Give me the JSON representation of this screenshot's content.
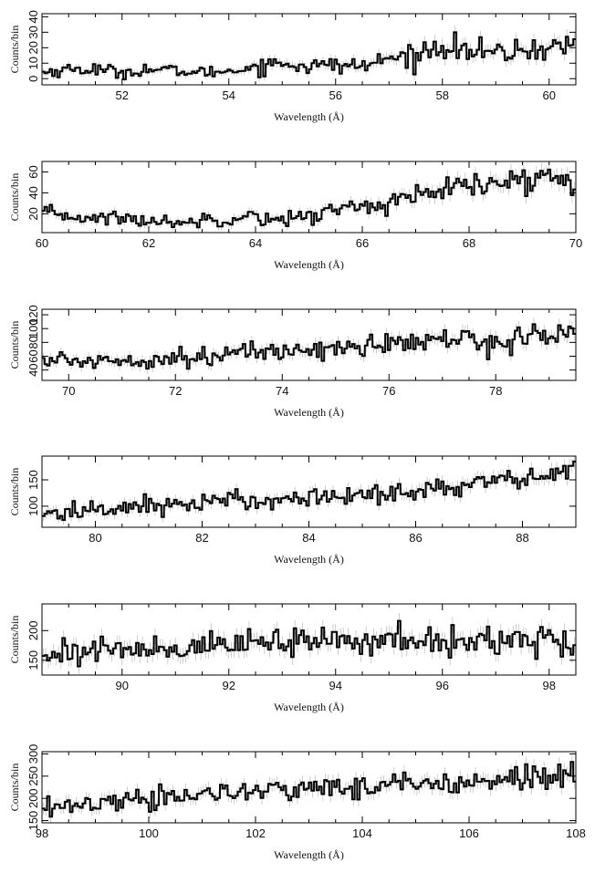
{
  "chart_data": [
    {
      "type": "line",
      "xlabel": "Wavelength (Å)",
      "ylabel": "Counts/bin",
      "xlim": [
        50.5,
        60.5
      ],
      "ylim": [
        -4,
        42
      ],
      "xticks": [
        52,
        54,
        56,
        58,
        60
      ],
      "yticks": [
        0,
        10,
        20,
        30,
        40
      ],
      "x": [
        50.5,
        51.0,
        51.5,
        52.0,
        52.5,
        53.0,
        53.5,
        54.0,
        54.5,
        55.0,
        55.5,
        56.0,
        56.5,
        57.0,
        57.5,
        58.0,
        58.5,
        59.0,
        59.5,
        60.0,
        60.5
      ],
      "values": [
        4,
        6,
        6,
        4,
        6,
        5,
        4,
        5,
        8,
        10,
        8,
        9,
        8,
        13,
        15,
        22,
        18,
        16,
        18,
        20,
        22
      ]
    },
    {
      "type": "line",
      "xlabel": "Wavelength (Å)",
      "ylabel": "Counts/bin",
      "xlim": [
        60,
        70
      ],
      "ylim": [
        2,
        70
      ],
      "xticks": [
        60,
        62,
        64,
        66,
        68,
        70
      ],
      "yticks": [
        20,
        40,
        60
      ],
      "x": [
        60,
        60.5,
        61,
        61.5,
        62,
        62.5,
        63,
        63.5,
        64,
        64.5,
        65,
        65.5,
        66,
        66.5,
        67,
        67.5,
        68,
        68.5,
        69,
        69.5,
        70
      ],
      "values": [
        20,
        18,
        16,
        16,
        13,
        12,
        14,
        16,
        18,
        14,
        18,
        24,
        28,
        30,
        36,
        42,
        46,
        48,
        52,
        55,
        52
      ]
    },
    {
      "type": "line",
      "xlabel": "Wavelength (Å)",
      "ylabel": "Counts/bin",
      "xlim": [
        69.5,
        79.5
      ],
      "ylim": [
        25,
        128
      ],
      "xticks": [
        70,
        72,
        74,
        76,
        78
      ],
      "yticks": [
        40,
        60,
        80,
        100,
        120
      ],
      "x": [
        69.5,
        70,
        70.5,
        71,
        71.5,
        72,
        72.5,
        73,
        73.5,
        74,
        74.5,
        75,
        75.5,
        76,
        76.5,
        77,
        77.5,
        78,
        78.5,
        79,
        79.5
      ],
      "values": [
        56,
        52,
        54,
        55,
        56,
        58,
        60,
        62,
        66,
        68,
        70,
        72,
        74,
        78,
        80,
        82,
        86,
        80,
        86,
        92,
        94
      ]
    },
    {
      "type": "line",
      "xlabel": "Wavelength (Å)",
      "ylabel": "Counts/bin",
      "xlim": [
        79,
        89
      ],
      "ylim": [
        60,
        195
      ],
      "xticks": [
        80,
        82,
        84,
        86,
        88
      ],
      "yticks": [
        100,
        150
      ],
      "x": [
        79,
        79.5,
        80,
        80.5,
        81,
        81.5,
        82,
        82.5,
        83,
        83.5,
        84,
        84.5,
        85,
        85.5,
        86,
        86.5,
        87,
        87.5,
        88,
        88.5,
        89
      ],
      "values": [
        85,
        88,
        92,
        98,
        102,
        104,
        106,
        110,
        112,
        114,
        116,
        118,
        122,
        126,
        130,
        134,
        140,
        146,
        150,
        160,
        170
      ]
    },
    {
      "type": "line",
      "xlabel": "Wavelength (Å)",
      "ylabel": "Counts/bin",
      "xlim": [
        88.5,
        98.5
      ],
      "ylim": [
        125,
        245
      ],
      "xticks": [
        90,
        92,
        94,
        96,
        98
      ],
      "yticks": [
        150,
        200
      ],
      "x": [
        88.5,
        89,
        89.5,
        90,
        90.5,
        91,
        91.5,
        92,
        92.5,
        93,
        93.5,
        94,
        94.5,
        95,
        95.5,
        96,
        96.5,
        97,
        97.5,
        98,
        98.5
      ],
      "values": [
        162,
        165,
        166,
        168,
        170,
        172,
        174,
        176,
        178,
        180,
        182,
        182,
        183,
        184,
        182,
        182,
        180,
        182,
        186,
        184,
        180
      ]
    },
    {
      "type": "line",
      "xlabel": "Wavelength (Å)",
      "ylabel": "Counts/bin",
      "xlim": [
        98,
        108
      ],
      "ylim": [
        145,
        305
      ],
      "xticks": [
        98,
        100,
        102,
        104,
        106,
        108
      ],
      "yticks": [
        150,
        200,
        250,
        300
      ],
      "x": [
        98,
        98.5,
        99,
        99.5,
        100,
        100.5,
        101,
        101.5,
        102,
        102.5,
        103,
        103.5,
        104,
        104.5,
        105,
        105.5,
        106,
        106.5,
        107,
        107.5,
        108
      ],
      "values": [
        175,
        182,
        190,
        196,
        200,
        205,
        208,
        212,
        214,
        218,
        222,
        225,
        228,
        232,
        236,
        238,
        242,
        245,
        248,
        250,
        252
      ]
    }
  ]
}
